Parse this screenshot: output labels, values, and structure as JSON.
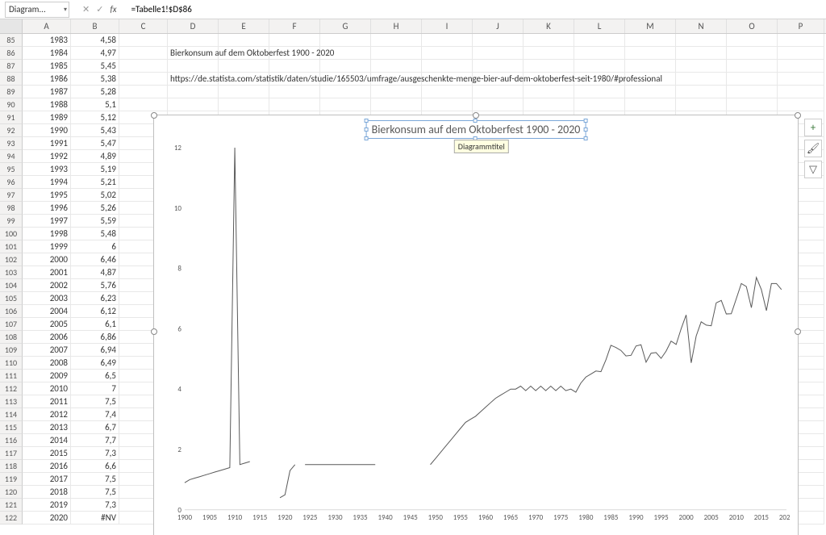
{
  "namebox": "Diagram...",
  "formula": "=Tabelle1!$D$86",
  "columns": [
    "A",
    "B",
    "C",
    "D",
    "E",
    "F",
    "G",
    "H",
    "I",
    "J",
    "K",
    "L",
    "M",
    "N",
    "O",
    "P"
  ],
  "first_row": 85,
  "textD86": "Bierkonsum auf dem Oktoberfest 1900 - 2020",
  "textD88": "https://de.statista.com/statistik/daten/studie/165503/umfrage/ausgeschenkte-menge-bier-auf-dem-oktoberfest-seit-1980/#professional",
  "rows": [
    {
      "r": 85,
      "a": "1983",
      "b": "4,58"
    },
    {
      "r": 86,
      "a": "1984",
      "b": "4,97"
    },
    {
      "r": 87,
      "a": "1985",
      "b": "5,45"
    },
    {
      "r": 88,
      "a": "1986",
      "b": "5,38"
    },
    {
      "r": 89,
      "a": "1987",
      "b": "5,28"
    },
    {
      "r": 90,
      "a": "1988",
      "b": "5,1"
    },
    {
      "r": 91,
      "a": "1989",
      "b": "5,12"
    },
    {
      "r": 92,
      "a": "1990",
      "b": "5,43"
    },
    {
      "r": 93,
      "a": "1991",
      "b": "5,47"
    },
    {
      "r": 94,
      "a": "1992",
      "b": "4,89"
    },
    {
      "r": 95,
      "a": "1993",
      "b": "5,19"
    },
    {
      "r": 96,
      "a": "1994",
      "b": "5,21"
    },
    {
      "r": 97,
      "a": "1995",
      "b": "5,02"
    },
    {
      "r": 98,
      "a": "1996",
      "b": "5,26"
    },
    {
      "r": 99,
      "a": "1997",
      "b": "5,59"
    },
    {
      "r": 100,
      "a": "1998",
      "b": "5,48"
    },
    {
      "r": 101,
      "a": "1999",
      "b": "6"
    },
    {
      "r": 102,
      "a": "2000",
      "b": "6,46"
    },
    {
      "r": 103,
      "a": "2001",
      "b": "4,87"
    },
    {
      "r": 104,
      "a": "2002",
      "b": "5,76"
    },
    {
      "r": 105,
      "a": "2003",
      "b": "6,23"
    },
    {
      "r": 106,
      "a": "2004",
      "b": "6,12"
    },
    {
      "r": 107,
      "a": "2005",
      "b": "6,1"
    },
    {
      "r": 108,
      "a": "2006",
      "b": "6,86"
    },
    {
      "r": 109,
      "a": "2007",
      "b": "6,94"
    },
    {
      "r": 110,
      "a": "2008",
      "b": "6,49"
    },
    {
      "r": 111,
      "a": "2009",
      "b": "6,5"
    },
    {
      "r": 112,
      "a": "2010",
      "b": "7"
    },
    {
      "r": 113,
      "a": "2011",
      "b": "7,5"
    },
    {
      "r": 114,
      "a": "2012",
      "b": "7,4"
    },
    {
      "r": 115,
      "a": "2013",
      "b": "6,7"
    },
    {
      "r": 116,
      "a": "2014",
      "b": "7,7"
    },
    {
      "r": 117,
      "a": "2015",
      "b": "7,3"
    },
    {
      "r": 118,
      "a": "2016",
      "b": "6,6"
    },
    {
      "r": 119,
      "a": "2017",
      "b": "7,5"
    },
    {
      "r": 120,
      "a": "2018",
      "b": "7,5"
    },
    {
      "r": 121,
      "a": "2019",
      "b": "7,3"
    },
    {
      "r": 122,
      "a": "2020",
      "b": "#NV"
    }
  ],
  "chart": {
    "type": "line",
    "title": "Bierkonsum auf dem Oktoberfest 1900 - 2020",
    "tooltip": "Diagrammtitel",
    "title_fontsize": 14,
    "bg": "#ffffff",
    "line_color": "#595959",
    "line_width": 1,
    "axis_color": "#d9d9d9",
    "label_color": "#595959",
    "label_fontsize": 9,
    "ylim": [
      0,
      12
    ],
    "ytick_step": 2,
    "xlim": [
      1900,
      2020
    ],
    "xtick_step": 5,
    "series": [
      [
        1900,
        0.9
      ],
      [
        1901,
        1.0
      ],
      [
        1902,
        1.05
      ],
      [
        1903,
        1.1
      ],
      [
        1904,
        1.15
      ],
      [
        1905,
        1.2
      ],
      [
        1906,
        1.25
      ],
      [
        1907,
        1.3
      ],
      [
        1908,
        1.35
      ],
      [
        1909,
        1.4
      ],
      [
        1910,
        12.0
      ],
      [
        1911,
        1.5
      ],
      [
        1912,
        1.55
      ],
      [
        1913,
        1.6
      ],
      [
        1914,
        null
      ],
      [
        1915,
        null
      ],
      [
        1916,
        null
      ],
      [
        1917,
        null
      ],
      [
        1918,
        null
      ],
      [
        1919,
        0.4
      ],
      [
        1920,
        0.5
      ],
      [
        1921,
        1.3
      ],
      [
        1922,
        1.5
      ],
      [
        1923,
        null
      ],
      [
        1924,
        1.5
      ],
      [
        1925,
        1.5
      ],
      [
        1926,
        1.5
      ],
      [
        1927,
        1.5
      ],
      [
        1928,
        1.5
      ],
      [
        1929,
        1.5
      ],
      [
        1930,
        1.5
      ],
      [
        1931,
        1.5
      ],
      [
        1932,
        1.5
      ],
      [
        1933,
        1.5
      ],
      [
        1934,
        1.5
      ],
      [
        1935,
        1.5
      ],
      [
        1936,
        1.5
      ],
      [
        1937,
        1.5
      ],
      [
        1938,
        1.5
      ],
      [
        1939,
        null
      ],
      [
        1940,
        null
      ],
      [
        1941,
        null
      ],
      [
        1942,
        null
      ],
      [
        1943,
        null
      ],
      [
        1944,
        null
      ],
      [
        1945,
        null
      ],
      [
        1946,
        null
      ],
      [
        1947,
        null
      ],
      [
        1948,
        null
      ],
      [
        1949,
        1.5
      ],
      [
        1950,
        1.7
      ],
      [
        1951,
        1.9
      ],
      [
        1952,
        2.1
      ],
      [
        1953,
        2.3
      ],
      [
        1954,
        2.5
      ],
      [
        1955,
        2.7
      ],
      [
        1956,
        2.9
      ],
      [
        1957,
        3.0
      ],
      [
        1958,
        3.1
      ],
      [
        1959,
        3.25
      ],
      [
        1960,
        3.4
      ],
      [
        1961,
        3.55
      ],
      [
        1962,
        3.7
      ],
      [
        1963,
        3.8
      ],
      [
        1964,
        3.9
      ],
      [
        1965,
        4.0
      ],
      [
        1966,
        4.0
      ],
      [
        1967,
        4.1
      ],
      [
        1968,
        3.95
      ],
      [
        1969,
        4.1
      ],
      [
        1970,
        3.95
      ],
      [
        1971,
        4.1
      ],
      [
        1972,
        3.95
      ],
      [
        1973,
        4.1
      ],
      [
        1974,
        3.95
      ],
      [
        1975,
        4.1
      ],
      [
        1976,
        3.95
      ],
      [
        1977,
        4.0
      ],
      [
        1978,
        3.9
      ],
      [
        1979,
        4.2
      ],
      [
        1980,
        4.4
      ],
      [
        1981,
        4.5
      ],
      [
        1982,
        4.6
      ],
      [
        1983,
        4.58
      ],
      [
        1984,
        4.97
      ],
      [
        1985,
        5.45
      ],
      [
        1986,
        5.38
      ],
      [
        1987,
        5.28
      ],
      [
        1988,
        5.1
      ],
      [
        1989,
        5.12
      ],
      [
        1990,
        5.43
      ],
      [
        1991,
        5.47
      ],
      [
        1992,
        4.89
      ],
      [
        1993,
        5.19
      ],
      [
        1994,
        5.21
      ],
      [
        1995,
        5.02
      ],
      [
        1996,
        5.26
      ],
      [
        1997,
        5.59
      ],
      [
        1998,
        5.48
      ],
      [
        1999,
        6.0
      ],
      [
        2000,
        6.46
      ],
      [
        2001,
        4.87
      ],
      [
        2002,
        5.76
      ],
      [
        2003,
        6.23
      ],
      [
        2004,
        6.12
      ],
      [
        2005,
        6.1
      ],
      [
        2006,
        6.86
      ],
      [
        2007,
        6.94
      ],
      [
        2008,
        6.49
      ],
      [
        2009,
        6.5
      ],
      [
        2010,
        7.0
      ],
      [
        2011,
        7.5
      ],
      [
        2012,
        7.4
      ],
      [
        2013,
        6.7
      ],
      [
        2014,
        7.7
      ],
      [
        2015,
        7.3
      ],
      [
        2016,
        6.6
      ],
      [
        2017,
        7.5
      ],
      [
        2018,
        7.5
      ],
      [
        2019,
        7.3
      ]
    ]
  },
  "side_buttons": {
    "plus": "+",
    "brush": "🖌",
    "funnel": "▽"
  }
}
